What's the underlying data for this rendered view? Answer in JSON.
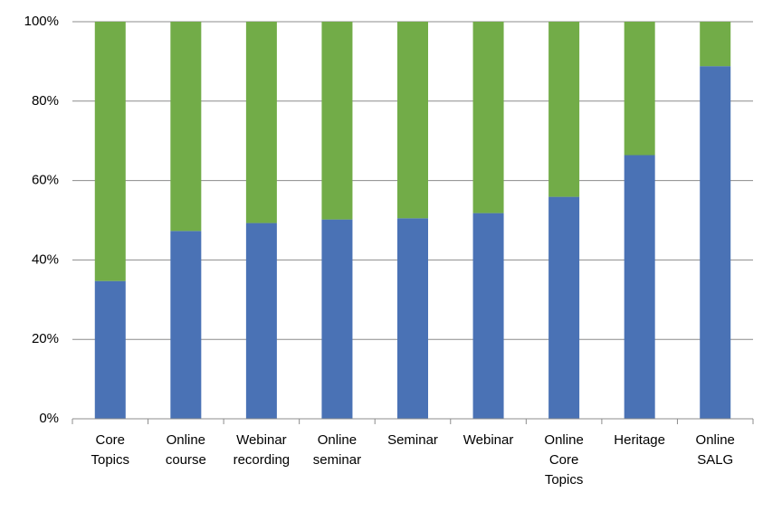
{
  "chart_data": {
    "type": "stacked_bar_percent",
    "categories": [
      "Core Topics",
      "Online course",
      "Webinar recording",
      "Online seminar",
      "Seminar",
      "Webinar",
      "Online Core Topics",
      "Heritage",
      "Online SALG"
    ],
    "series": [
      {
        "color": "#4a72b5",
        "values": [
          34.7,
          47.3,
          49.3,
          50.2,
          50.5,
          51.8,
          55.9,
          66.4,
          88.8
        ]
      },
      {
        "color": "#72ac48",
        "values": [
          65.3,
          52.7,
          50.7,
          49.8,
          49.5,
          48.2,
          44.1,
          33.6,
          11.2
        ]
      }
    ],
    "ylim": [
      0,
      100
    ],
    "yticks": [
      {
        "value": 0,
        "label": "0%"
      },
      {
        "value": 20,
        "label": "20%"
      },
      {
        "value": 40,
        "label": "40%"
      },
      {
        "value": 60,
        "label": "60%"
      },
      {
        "value": 80,
        "label": "80%"
      },
      {
        "value": 100,
        "label": "100%"
      }
    ],
    "grid": true
  }
}
